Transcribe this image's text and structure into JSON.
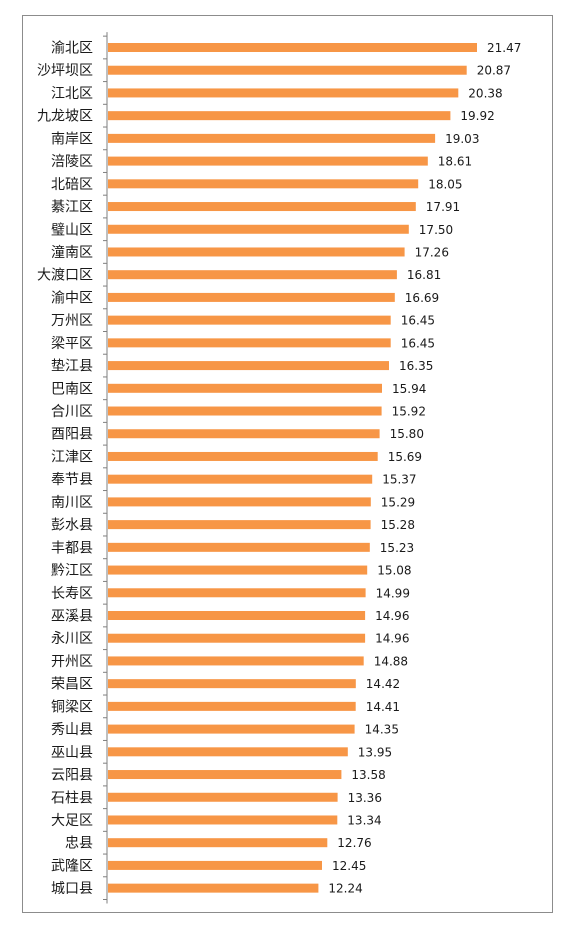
{
  "chart_data": {
    "type": "bar",
    "orientation": "horizontal",
    "bar_color": "#f79646",
    "axis_color": "#7f7f7f",
    "frame_color": "#8c8c8c",
    "categories": [
      "渝北区",
      "沙坪坝区",
      "江北区",
      "九龙坡区",
      "南岸区",
      "涪陵区",
      "北碚区",
      "綦江区",
      "璧山区",
      "潼南区",
      "大渡口区",
      "渝中区",
      "万州区",
      "梁平区",
      "垫江县",
      "巴南区",
      "合川区",
      "酉阳县",
      "江津区",
      "奉节县",
      "南川区",
      "彭水县",
      "丰都县",
      "黔江区",
      "长寿区",
      "巫溪县",
      "永川区",
      "开州区",
      "荣昌区",
      "铜梁区",
      "秀山县",
      "巫山县",
      "云阳县",
      "石柱县",
      "大足区",
      "忠县",
      "武隆区",
      "城口县"
    ],
    "values": [
      21.47,
      20.87,
      20.38,
      19.92,
      19.03,
      18.61,
      18.05,
      17.91,
      17.5,
      17.26,
      16.81,
      16.69,
      16.45,
      16.45,
      16.35,
      15.94,
      15.92,
      15.8,
      15.69,
      15.37,
      15.29,
      15.28,
      15.23,
      15.08,
      14.99,
      14.96,
      14.96,
      14.88,
      14.42,
      14.41,
      14.35,
      13.95,
      13.58,
      13.36,
      13.34,
      12.76,
      12.45,
      12.24
    ],
    "value_labels": [
      "21.47",
      "20.87",
      "20.38",
      "19.92",
      "19.03",
      "18.61",
      "18.05",
      "17.91",
      "17.50",
      "17.26",
      "16.81",
      "16.69",
      "16.45",
      "16.45",
      "16.35",
      "15.94",
      "15.92",
      "15.80",
      "15.69",
      "15.37",
      "15.29",
      "15.28",
      "15.23",
      "15.08",
      "14.99",
      "14.96",
      "14.96",
      "14.88",
      "14.42",
      "14.41",
      "14.35",
      "13.95",
      "13.58",
      "13.36",
      "13.34",
      "12.76",
      "12.45",
      "12.24"
    ],
    "title": "",
    "xlabel": "",
    "ylabel": "",
    "xlim": [
      0,
      21.47
    ],
    "grid": false,
    "legend": "none"
  }
}
